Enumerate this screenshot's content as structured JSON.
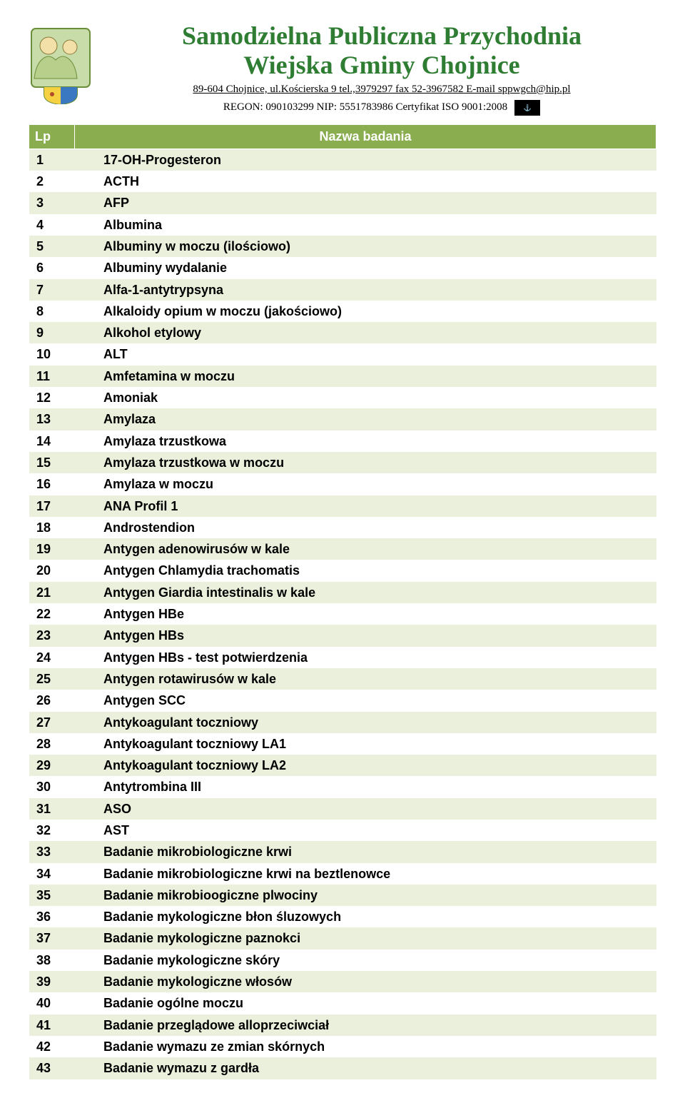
{
  "header": {
    "title_line1": "Samodzielna Publiczna Przychodnia",
    "title_line2": "Wiejska Gminy Chojnice",
    "address": "89-604 Chojnice, ul.Kościerska 9  tel.,3979297 fax 52-3967582 E-mail sppwgch@hip.pl",
    "regon": "REGON: 090103299  NIP: 5551783986 Certyfikat ISO 9001:2008",
    "cert_badge": "⚓"
  },
  "table": {
    "col_lp": "Lp",
    "col_name": "Nazwa badania",
    "rows": [
      {
        "lp": "1",
        "name": "17-OH-Progesteron"
      },
      {
        "lp": "2",
        "name": "ACTH"
      },
      {
        "lp": "3",
        "name": "AFP"
      },
      {
        "lp": "4",
        "name": "Albumina"
      },
      {
        "lp": "5",
        "name": "Albuminy w moczu (ilościowo)"
      },
      {
        "lp": "6",
        "name": "Albuminy wydalanie"
      },
      {
        "lp": "7",
        "name": "Alfa-1-antytrypsyna"
      },
      {
        "lp": "8",
        "name": "Alkaloidy opium w moczu (jakościowo)"
      },
      {
        "lp": "9",
        "name": "Alkohol etylowy"
      },
      {
        "lp": "10",
        "name": "ALT"
      },
      {
        "lp": "11",
        "name": "Amfetamina w moczu"
      },
      {
        "lp": "12",
        "name": "Amoniak"
      },
      {
        "lp": "13",
        "name": "Amylaza"
      },
      {
        "lp": "14",
        "name": "Amylaza trzustkowa"
      },
      {
        "lp": "15",
        "name": "Amylaza trzustkowa w moczu"
      },
      {
        "lp": "16",
        "name": "Amylaza w moczu"
      },
      {
        "lp": "17",
        "name": "ANA Profil 1"
      },
      {
        "lp": "18",
        "name": "Androstendion"
      },
      {
        "lp": "19",
        "name": "Antygen adenowirusów w kale"
      },
      {
        "lp": "20",
        "name": "Antygen Chlamydia trachomatis"
      },
      {
        "lp": "21",
        "name": "Antygen Giardia intestinalis w kale"
      },
      {
        "lp": "22",
        "name": "Antygen HBe"
      },
      {
        "lp": "23",
        "name": "Antygen HBs"
      },
      {
        "lp": "24",
        "name": "Antygen HBs - test potwierdzenia"
      },
      {
        "lp": "25",
        "name": "Antygen rotawirusów w kale"
      },
      {
        "lp": "26",
        "name": "Antygen SCC"
      },
      {
        "lp": "27",
        "name": "Antykoagulant toczniowy"
      },
      {
        "lp": "28",
        "name": "Antykoagulant toczniowy LA1"
      },
      {
        "lp": "29",
        "name": "Antykoagulant toczniowy LA2"
      },
      {
        "lp": "30",
        "name": "Antytrombina III"
      },
      {
        "lp": "31",
        "name": "ASO"
      },
      {
        "lp": "32",
        "name": "AST"
      },
      {
        "lp": "33",
        "name": "Badanie mikrobiologiczne krwi"
      },
      {
        "lp": "34",
        "name": "Badanie mikrobiologiczne krwi na beztlenowce"
      },
      {
        "lp": "35",
        "name": "Badanie mikrobioogiczne plwociny"
      },
      {
        "lp": "36",
        "name": "Badanie mykologiczne błon śluzowych"
      },
      {
        "lp": "37",
        "name": "Badanie mykologiczne paznokci"
      },
      {
        "lp": "38",
        "name": "Badanie mykologiczne skóry"
      },
      {
        "lp": "39",
        "name": "Badanie mykologiczne włosów"
      },
      {
        "lp": "40",
        "name": "Badanie ogólne moczu"
      },
      {
        "lp": "41",
        "name": "Badanie przeglądowe alloprzeciwciał"
      },
      {
        "lp": "42",
        "name": "Badanie wymazu ze zmian skórnych"
      },
      {
        "lp": "43",
        "name": "Badanie wymazu z gardła"
      }
    ]
  },
  "colors": {
    "title": "#2e7d32",
    "header_bg": "#8aad4f",
    "row_odd": "#eaf0dc",
    "row_even": "#ffffff",
    "text": "#000000",
    "header_text": "#ffffff"
  }
}
